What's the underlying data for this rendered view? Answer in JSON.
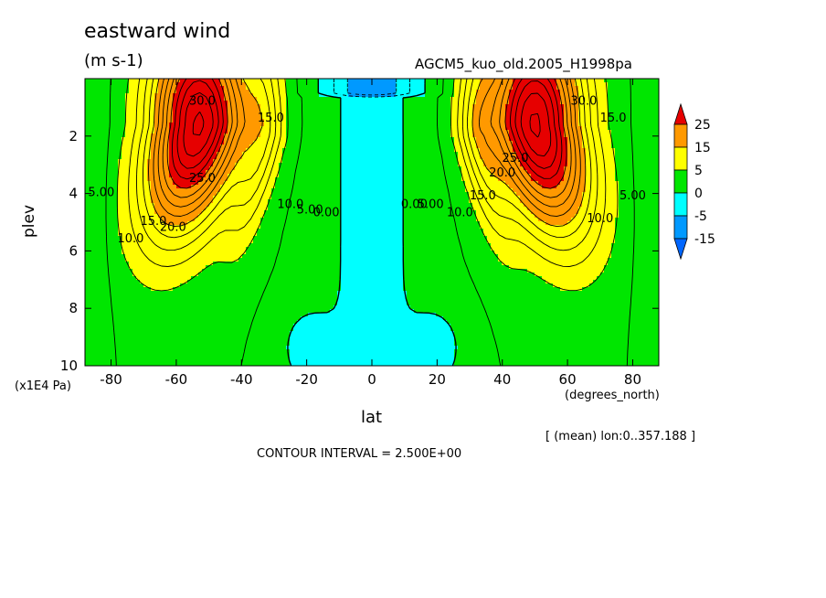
{
  "chart_data": {
    "type": "contour",
    "title": "eastward wind",
    "units": "(m s-1)",
    "run_label": "AGCM5_kuo_old.2005_H1998pa",
    "xlabel": "lat",
    "x_unit": "(degrees_north)",
    "ylabel": "plev",
    "y_unit": "(x1E4 Pa)",
    "footnote": "[ (mean) lon:0..357.188 ]",
    "contour_interval_text": "CONTOUR INTERVAL = 2.500E+00",
    "xlim": [
      -88,
      88
    ],
    "ylim": [
      10,
      0
    ],
    "x_ticks": [
      -80,
      -60,
      -40,
      -20,
      0,
      20,
      40,
      60,
      80
    ],
    "x_tick_labels": [
      "-80",
      "-60",
      "-40",
      "-20",
      "0",
      "20",
      "40",
      "60",
      "80"
    ],
    "y_ticks": [
      2,
      4,
      6,
      8,
      10
    ],
    "y_tick_labels": [
      "2",
      "4",
      "6",
      "8",
      "10"
    ],
    "contour_interval": 2.5,
    "fill_levels": [
      -15,
      -5,
      0,
      5,
      15,
      25
    ],
    "colorbar": {
      "labels": [
        "25",
        "15",
        "5",
        "0",
        "-5",
        "-15"
      ],
      "colors": [
        "#e60000",
        "#ff9900",
        "#ffff00",
        "#00e600",
        "#00ffff",
        "#0099ff",
        "#0066ff"
      ]
    },
    "contour_labels": [
      {
        "text": "30.0",
        "lat": -52,
        "plev": 0.9
      },
      {
        "text": "15.0",
        "lat": -31,
        "plev": 1.5
      },
      {
        "text": "25.0",
        "lat": -52,
        "plev": 3.6
      },
      {
        "text": "5.00",
        "lat": -83,
        "plev": 4.1
      },
      {
        "text": "20.0",
        "lat": -61,
        "plev": 5.3
      },
      {
        "text": "15.0",
        "lat": -67,
        "plev": 5.1
      },
      {
        "text": "10.0",
        "lat": -74,
        "plev": 5.7
      },
      {
        "text": "10.0",
        "lat": -25,
        "plev": 4.5
      },
      {
        "text": "5.00",
        "lat": -19,
        "plev": 4.7
      },
      {
        "text": "0.00",
        "lat": -14,
        "plev": 4.8
      },
      {
        "text": "30.0",
        "lat": 65,
        "plev": 0.9
      },
      {
        "text": "15.0",
        "lat": 74,
        "plev": 1.5
      },
      {
        "text": "25.0",
        "lat": 44,
        "plev": 2.9
      },
      {
        "text": "20.0",
        "lat": 40,
        "plev": 3.4
      },
      {
        "text": "15.0",
        "lat": 34,
        "plev": 4.2
      },
      {
        "text": "10.0",
        "lat": 27,
        "plev": 4.8
      },
      {
        "text": "5.00",
        "lat": 18,
        "plev": 4.5
      },
      {
        "text": "0.00",
        "lat": 13,
        "plev": 4.5
      },
      {
        "text": "10.0",
        "lat": 70,
        "plev": 5.0
      },
      {
        "text": "5.00",
        "lat": 80,
        "plev": 4.2
      }
    ],
    "grid": false
  }
}
